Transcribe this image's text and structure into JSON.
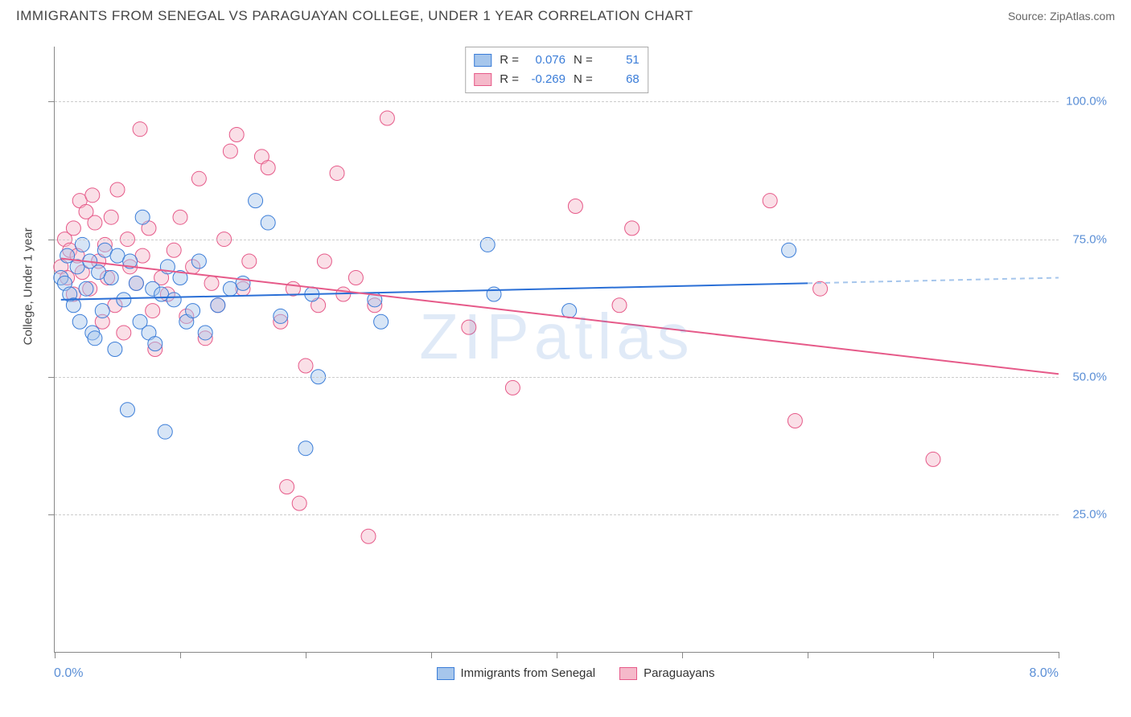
{
  "header": {
    "title": "IMMIGRANTS FROM SENEGAL VS PARAGUAYAN COLLEGE, UNDER 1 YEAR CORRELATION CHART",
    "source_label": "Source:",
    "source_name": "ZipAtlas.com"
  },
  "watermark": {
    "zip": "ZIP",
    "atlas": "atlas"
  },
  "chart": {
    "type": "scatter",
    "background_color": "#ffffff",
    "grid_color": "#cccccc",
    "axis_color": "#888888",
    "tick_label_color": "#5b8fd6",
    "y_axis_title": "College, Under 1 year",
    "xlim": [
      0,
      8
    ],
    "ylim": [
      0,
      110
    ],
    "x_min_label": "0.0%",
    "x_max_label": "8.0%",
    "y_ticks": [
      25,
      50,
      75,
      100
    ],
    "y_tick_labels": [
      "25.0%",
      "50.0%",
      "75.0%",
      "100.0%"
    ],
    "x_tick_positions": [
      0,
      1,
      2,
      3,
      4,
      5,
      6,
      7,
      8
    ],
    "marker_radius": 9,
    "marker_opacity": 0.45,
    "line_width": 2,
    "series": [
      {
        "name": "Immigrants from Senegal",
        "fill": "#a6c6ec",
        "stroke": "#3b7dd8",
        "line_color": "#2a6fd6",
        "dash_color": "#a6c6ec",
        "r_value": "0.076",
        "n_value": "51",
        "regression": {
          "x1": 0.05,
          "y1": 64,
          "x2": 6.0,
          "y2": 67
        },
        "regression_ext": {
          "x1": 6.0,
          "y1": 67,
          "x2": 8.0,
          "y2": 68
        },
        "points": [
          [
            0.05,
            68
          ],
          [
            0.08,
            67
          ],
          [
            0.1,
            72
          ],
          [
            0.12,
            65
          ],
          [
            0.15,
            63
          ],
          [
            0.18,
            70
          ],
          [
            0.2,
            60
          ],
          [
            0.22,
            74
          ],
          [
            0.25,
            66
          ],
          [
            0.28,
            71
          ],
          [
            0.3,
            58
          ],
          [
            0.32,
            57
          ],
          [
            0.35,
            69
          ],
          [
            0.38,
            62
          ],
          [
            0.4,
            73
          ],
          [
            0.45,
            68
          ],
          [
            0.48,
            55
          ],
          [
            0.5,
            72
          ],
          [
            0.55,
            64
          ],
          [
            0.58,
            44
          ],
          [
            0.6,
            71
          ],
          [
            0.65,
            67
          ],
          [
            0.68,
            60
          ],
          [
            0.7,
            79
          ],
          [
            0.75,
            58
          ],
          [
            0.78,
            66
          ],
          [
            0.8,
            56
          ],
          [
            0.85,
            65
          ],
          [
            0.88,
            40
          ],
          [
            0.9,
            70
          ],
          [
            0.95,
            64
          ],
          [
            1.0,
            68
          ],
          [
            1.05,
            60
          ],
          [
            1.1,
            62
          ],
          [
            1.15,
            71
          ],
          [
            1.2,
            58
          ],
          [
            1.3,
            63
          ],
          [
            1.4,
            66
          ],
          [
            1.5,
            67
          ],
          [
            1.6,
            82
          ],
          [
            1.7,
            78
          ],
          [
            1.8,
            61
          ],
          [
            2.0,
            37
          ],
          [
            2.05,
            65
          ],
          [
            2.1,
            50
          ],
          [
            2.55,
            64
          ],
          [
            2.6,
            60
          ],
          [
            3.45,
            74
          ],
          [
            3.5,
            65
          ],
          [
            4.1,
            62
          ],
          [
            5.85,
            73
          ]
        ]
      },
      {
        "name": "Paraguayans",
        "fill": "#f5b9ca",
        "stroke": "#e65a89",
        "line_color": "#e65a89",
        "r_value": "-0.269",
        "n_value": "68",
        "regression": {
          "x1": 0.05,
          "y1": 71.5,
          "x2": 8.0,
          "y2": 50.5
        },
        "points": [
          [
            0.05,
            70
          ],
          [
            0.08,
            75
          ],
          [
            0.1,
            68
          ],
          [
            0.12,
            73
          ],
          [
            0.15,
            65
          ],
          [
            0.15,
            77
          ],
          [
            0.18,
            72
          ],
          [
            0.2,
            82
          ],
          [
            0.22,
            69
          ],
          [
            0.25,
            80
          ],
          [
            0.28,
            66
          ],
          [
            0.3,
            83
          ],
          [
            0.32,
            78
          ],
          [
            0.35,
            71
          ],
          [
            0.38,
            60
          ],
          [
            0.4,
            74
          ],
          [
            0.42,
            68
          ],
          [
            0.45,
            79
          ],
          [
            0.48,
            63
          ],
          [
            0.5,
            84
          ],
          [
            0.55,
            58
          ],
          [
            0.58,
            75
          ],
          [
            0.6,
            70
          ],
          [
            0.65,
            67
          ],
          [
            0.68,
            95
          ],
          [
            0.7,
            72
          ],
          [
            0.75,
            77
          ],
          [
            0.78,
            62
          ],
          [
            0.8,
            55
          ],
          [
            0.85,
            68
          ],
          [
            0.9,
            65
          ],
          [
            0.95,
            73
          ],
          [
            1.0,
            79
          ],
          [
            1.05,
            61
          ],
          [
            1.1,
            70
          ],
          [
            1.15,
            86
          ],
          [
            1.2,
            57
          ],
          [
            1.25,
            67
          ],
          [
            1.3,
            63
          ],
          [
            1.35,
            75
          ],
          [
            1.4,
            91
          ],
          [
            1.45,
            94
          ],
          [
            1.5,
            66
          ],
          [
            1.55,
            71
          ],
          [
            1.65,
            90
          ],
          [
            1.7,
            88
          ],
          [
            1.8,
            60
          ],
          [
            1.85,
            30
          ],
          [
            1.9,
            66
          ],
          [
            1.95,
            27
          ],
          [
            2.0,
            52
          ],
          [
            2.1,
            63
          ],
          [
            2.15,
            71
          ],
          [
            2.25,
            87
          ],
          [
            2.3,
            65
          ],
          [
            2.4,
            68
          ],
          [
            2.5,
            21
          ],
          [
            2.55,
            63
          ],
          [
            2.65,
            97
          ],
          [
            3.3,
            59
          ],
          [
            3.65,
            48
          ],
          [
            4.15,
            81
          ],
          [
            4.5,
            63
          ],
          [
            4.6,
            77
          ],
          [
            5.7,
            82
          ],
          [
            5.9,
            42
          ],
          [
            6.1,
            66
          ],
          [
            7.0,
            35
          ]
        ]
      }
    ],
    "legend_top": {
      "r_label": "R  =",
      "n_label": "N  ="
    },
    "legend_bottom": {
      "items": [
        "Immigrants from Senegal",
        "Paraguayans"
      ]
    }
  }
}
